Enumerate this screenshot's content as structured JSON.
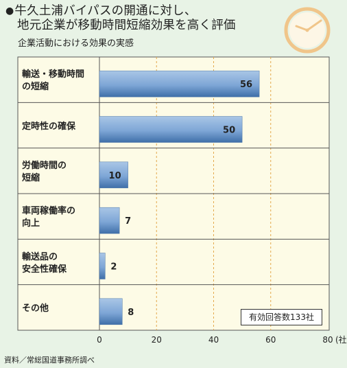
{
  "title_line1": "牛久土浦バイパスの開通に対し、",
  "title_line2": "地元企業が移動時間短縮効果を高く評価",
  "title_bullet": "●",
  "subtitle": "企業活動における効果の実感",
  "note": "有効回答数133社",
  "source": "資料／常総国道事務所調べ",
  "colors": {
    "bar_dark": "#3f6fa8",
    "bar_light": "#a9c6e6",
    "plot_bg": "#fdfbe6",
    "grid": "#e4a84a",
    "clock": "#f0c58a"
  },
  "icons": {
    "clock": "clock-icon"
  },
  "chart_data": {
    "type": "bar",
    "orientation": "horizontal",
    "categories": [
      [
        "輸送・移動時間",
        "の短縮"
      ],
      [
        "定時性の確保"
      ],
      [
        "労働時間の",
        "短縮"
      ],
      [
        "車両稼働率の",
        "向上"
      ],
      [
        "輸送品の",
        "安全性確保"
      ],
      [
        "その他"
      ]
    ],
    "values": [
      56,
      50,
      10,
      7,
      2,
      8
    ],
    "xlim": [
      0,
      80
    ],
    "xticks": [
      0,
      20,
      40,
      60,
      80
    ],
    "xunit": "(社)",
    "grid": true
  }
}
